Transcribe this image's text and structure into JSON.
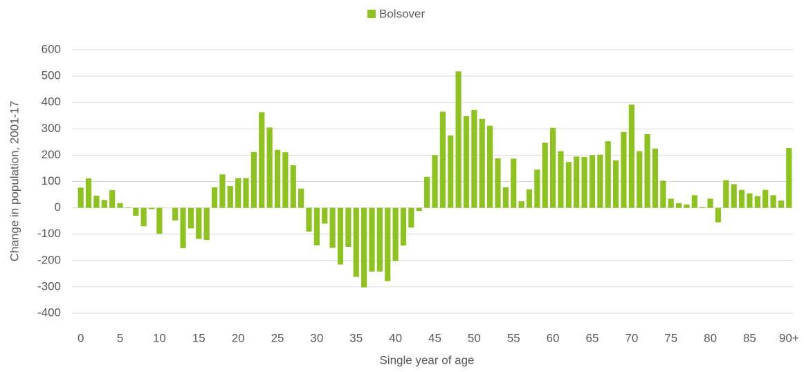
{
  "chart_data": {
    "type": "bar",
    "xlabel": "Single year of age",
    "ylabel": "Change in population, 2001-17",
    "categories": [
      "0",
      null,
      null,
      null,
      null,
      "5",
      null,
      null,
      null,
      null,
      "10",
      null,
      null,
      null,
      null,
      "15",
      null,
      null,
      null,
      null,
      "20",
      null,
      null,
      null,
      null,
      "25",
      null,
      null,
      null,
      null,
      "30",
      null,
      null,
      null,
      null,
      "35",
      null,
      null,
      null,
      null,
      "40",
      null,
      null,
      null,
      null,
      "45",
      null,
      null,
      null,
      null,
      "50",
      null,
      null,
      null,
      null,
      "55",
      null,
      null,
      null,
      null,
      "60",
      null,
      null,
      null,
      null,
      "65",
      null,
      null,
      null,
      null,
      "70",
      null,
      null,
      null,
      null,
      "75",
      null,
      null,
      null,
      null,
      "80",
      null,
      null,
      null,
      null,
      "85",
      null,
      null,
      null,
      null,
      "90+"
    ],
    "series": [
      {
        "name": "Bolsover",
        "color": "#8dc21f",
        "values": [
          77,
          112,
          46,
          30,
          67,
          18,
          2,
          -30,
          -70,
          -5,
          -98,
          0,
          -48,
          -153,
          -78,
          -118,
          -122,
          78,
          127,
          83,
          113,
          113,
          212,
          363,
          305,
          220,
          211,
          162,
          73,
          -90,
          -142,
          -60,
          -152,
          -215,
          -148,
          -262,
          -302,
          -242,
          -242,
          -278,
          -202,
          -143,
          -75,
          -12,
          118,
          200,
          365,
          275,
          518,
          348,
          372,
          338,
          312,
          188,
          78,
          187,
          25,
          70,
          145,
          247,
          304,
          215,
          174,
          195,
          193,
          200,
          202,
          253,
          180,
          288,
          392,
          215,
          280,
          225,
          103,
          35,
          18,
          13,
          48,
          3,
          35,
          -55,
          105,
          90,
          68,
          55,
          45,
          68,
          48,
          28,
          227
        ]
      }
    ],
    "ylim": [
      -400,
      600
    ],
    "yticks": [
      -400,
      -300,
      -200,
      -100,
      0,
      100,
      200,
      300,
      400,
      500,
      600
    ],
    "grid": true,
    "legend": "top"
  }
}
